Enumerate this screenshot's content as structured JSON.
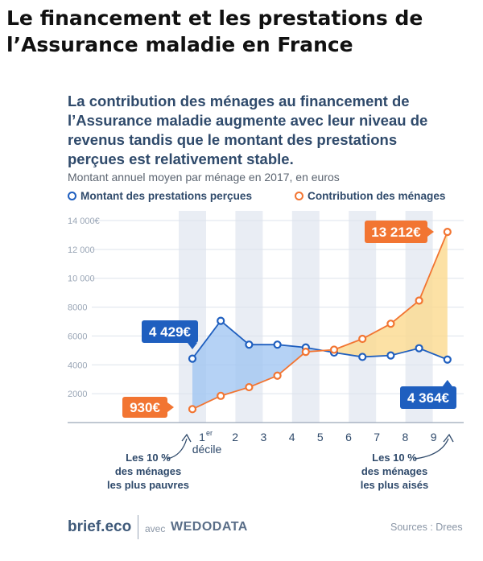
{
  "page_title": "Le financement et les prestations de l’Assurance maladie en France",
  "subtitle": "La contribution des ménages au financement de l’Assurance maladie augmente avec leur niveau de revenus tandis que le montant des prestations perçues est relativement stable.",
  "unit_note": "Montant annuel moyen par ménage en 2017, en euros",
  "footer": {
    "brand": "brief.eco",
    "with": "avec",
    "partner": "WEDODATA",
    "source": "Sources : Drees"
  },
  "chart_data": {
    "type": "line",
    "x": [
      1,
      2,
      3,
      4,
      5,
      6,
      7,
      8,
      9,
      10
    ],
    "xtick_labels": [
      "1er décile",
      "2",
      "3",
      "4",
      "5",
      "6",
      "7",
      "8",
      "9",
      ""
    ],
    "ylim": [
      0,
      14000
    ],
    "yticks": [
      2000,
      4000,
      6000,
      8000,
      10000,
      12000,
      14000
    ],
    "ytick_labels": [
      "2000",
      "4000",
      "6000",
      "8000",
      "10 000",
      "12 000",
      "14 000€"
    ],
    "series": [
      {
        "name": "Montant des prestations perçues",
        "color": "#1f5fbf",
        "values": [
          4429,
          7050,
          5400,
          5400,
          5200,
          4850,
          4550,
          4650,
          5150,
          4364
        ]
      },
      {
        "name": "Contribution des ménages",
        "color": "#f27532",
        "values": [
          930,
          1850,
          2450,
          3250,
          4900,
          5050,
          5800,
          6850,
          8450,
          13212
        ]
      }
    ],
    "callouts": [
      {
        "text": "4 429€",
        "series": 0,
        "index": 0,
        "color": "#1f5fbf"
      },
      {
        "text": "930€",
        "series": 1,
        "index": 0,
        "color": "#f27532"
      },
      {
        "text": "13 212€",
        "series": 1,
        "index": 9,
        "color": "#f27532"
      },
      {
        "text": "4 364€",
        "series": 0,
        "index": 9,
        "color": "#1f5fbf"
      }
    ],
    "annotations": [
      {
        "lines": [
          "Les 10 %",
          "des ménages",
          "les plus pauvres"
        ],
        "side": "left"
      },
      {
        "lines": [
          "Les 10 %",
          "des ménages",
          "les plus aisés"
        ],
        "side": "right"
      }
    ],
    "grid": true,
    "legend": "top"
  }
}
